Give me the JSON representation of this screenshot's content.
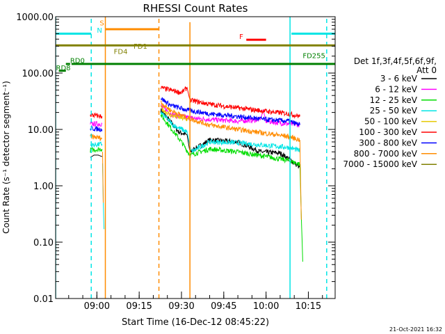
{
  "chart_data": {
    "type": "line",
    "title": "RHESSI Count Rates",
    "xlabel": "Start Time (16-Dec-12 08:45:22)",
    "ylabel": "Count Rate (s⁻¹ detector segment⁻¹)",
    "yscale": "log",
    "xlim": [
      "08:45:22",
      "10:24:30"
    ],
    "ylim": [
      0.01,
      1000
    ],
    "x_ticks": [
      "09:00",
      "09:15",
      "09:30",
      "09:45",
      "10:00",
      "10:15"
    ],
    "y_ticks": [
      "1000.00",
      "100.00",
      "10.00",
      "1.00",
      "0.10",
      "0.01"
    ],
    "legend": {
      "title_lines": [
        "Det 1f,3f,4f,5f,6f,9f,",
        "Att 0"
      ],
      "placement": "right",
      "entries": [
        {
          "label": "3 - 6 keV",
          "color": "#000000"
        },
        {
          "label": "6 - 12 keV",
          "color": "#ff00ff"
        },
        {
          "label": "12 - 25 keV",
          "color": "#00dd00"
        },
        {
          "label": "25 - 50 keV",
          "color": "#00e5e5"
        },
        {
          "label": "50 - 100 keV",
          "color": "#e5c800"
        },
        {
          "label": "100 - 300 keV",
          "color": "#ff0000"
        },
        {
          "label": "300 - 800 keV",
          "color": "#0000ff"
        },
        {
          "label": "800 - 7000 keV",
          "color": "#ff8c00"
        },
        {
          "label": "7000 - 15000 keV",
          "color": "#808000"
        }
      ]
    },
    "series": [
      {
        "name": "3 - 6 keV",
        "color": "#000000",
        "segments": [
          {
            "x": [
              "08:57:40",
              "08:59:00",
              "09:00:30",
              "09:01:50"
            ],
            "y": [
              3.2,
              3.5,
              3.5,
              3.3
            ]
          },
          {
            "x": [
              "09:22:40",
              "09:26:00",
              "09:29:00",
              "09:32:00",
              "09:33:00",
              "09:40:00",
              "09:50:00",
              "09:58:00",
              "10:05:00",
              "10:09:00",
              "10:12:00"
            ],
            "y": [
              22,
              14,
              9,
              8,
              4,
              6.5,
              6,
              4,
              3.8,
              2.8,
              2.1
            ]
          }
        ]
      },
      {
        "name": "6 - 12 keV",
        "color": "#ff00ff",
        "segments": [
          {
            "x": [
              "08:57:40",
              "09:01:50"
            ],
            "y": [
              12.5,
              12.5
            ]
          },
          {
            "x": [
              "09:22:40",
              "09:27:00",
              "09:33:00",
              "09:40:00",
              "09:50:00",
              "09:58:00",
              "09:59:00",
              "10:00:00",
              "10:05:00",
              "10:12:00"
            ],
            "y": [
              26,
              18,
              16,
              15,
              14,
              15,
              22,
              14,
              13,
              12
            ]
          }
        ]
      },
      {
        "name": "12 - 25 keV",
        "color": "#00dd00",
        "segments": [
          {
            "x": [
              "08:57:40",
              "09:01:50"
            ],
            "y": [
              4.3,
              4.5
            ]
          },
          {
            "x": [
              "09:22:40",
              "09:26:00",
              "09:30:00",
              "09:33:00",
              "09:40:00",
              "09:50:00",
              "10:00:00",
              "10:08:00",
              "10:12:00"
            ],
            "y": [
              18,
              11,
              6,
              3.5,
              4.5,
              4,
              3.3,
              2.8,
              2.4
            ]
          },
          {
            "x": [
              "10:12:00",
              "10:12:30",
              "10:13:00"
            ],
            "y": [
              2.4,
              0.3,
              0.045
            ]
          }
        ]
      },
      {
        "name": "25 - 50 keV",
        "color": "#00e5e5",
        "segments": [
          {
            "x": [
              "08:57:40",
              "09:01:50"
            ],
            "y": [
              5.2,
              5.5
            ]
          },
          {
            "x": [
              "09:02:00",
              "09:02:15",
              "09:02:30"
            ],
            "y": [
              2.5,
              0.5,
              0.17
            ]
          },
          {
            "x": [
              "09:22:40",
              "09:27:00",
              "09:32:00",
              "09:33:30",
              "09:40:00",
              "09:50:00",
              "10:00:00",
              "10:08:00",
              "10:12:00"
            ],
            "y": [
              20,
              12,
              9,
              4,
              6,
              5.8,
              5.2,
              4.8,
              4.2
            ]
          }
        ]
      },
      {
        "name": "50 - 100 keV",
        "color": "#e5c800",
        "segments": [
          {
            "x": [
              "09:22:40",
              "09:26:00",
              "09:32:00"
            ],
            "y": [
              24,
              18,
              15
            ]
          }
        ]
      },
      {
        "name": "100 - 300 keV",
        "color": "#ff0000",
        "segments": [
          {
            "x": [
              "08:57:40",
              "09:01:50"
            ],
            "y": [
              18,
              17
            ]
          },
          {
            "x": [
              "09:22:40",
              "09:26:00",
              "09:30:00",
              "09:32:00",
              "09:33:00",
              "09:40:00",
              "09:50:00",
              "10:00:00",
              "10:08:00",
              "10:12:00"
            ],
            "y": [
              55,
              50,
              45,
              55,
              33,
              28,
              24,
              21,
              19,
              17
            ]
          }
        ]
      },
      {
        "name": "300 - 800 keV",
        "color": "#0000ff",
        "segments": [
          {
            "x": [
              "08:57:40",
              "09:01:50"
            ],
            "y": [
              10.5,
              10
            ]
          },
          {
            "x": [
              "09:22:40",
              "09:26:00",
              "09:32:00",
              "09:40:00",
              "09:50:00",
              "10:00:00",
              "10:08:00",
              "10:12:00"
            ],
            "y": [
              36,
              27,
              22,
              19,
              17,
              15,
              14,
              12
            ]
          }
        ]
      },
      {
        "name": "800 - 7000 keV",
        "color": "#ff8c00",
        "segments": [
          {
            "x": [
              "08:57:40",
              "09:01:50"
            ],
            "y": [
              7.5,
              7
            ]
          },
          {
            "x": [
              "09:02:00",
              "09:02:15"
            ],
            "y": [
              4,
              0.5
            ]
          },
          {
            "x": [
              "09:22:40",
              "09:26:00",
              "09:32:00",
              "09:40:00",
              "09:50:00",
              "10:00:00",
              "10:08:00",
              "10:12:00"
            ],
            "y": [
              30,
              22,
              16,
              12,
              10,
              8.5,
              7.5,
              6.5
            ]
          },
          {
            "x": [
              "10:12:00",
              "10:12:30"
            ],
            "y": [
              6.5,
              0.25
            ]
          }
        ]
      }
    ],
    "annotations": [
      {
        "kind": "hline",
        "label": "FD1",
        "color": "#808000",
        "y": 310,
        "x": [
          "08:45:22",
          "10:24:30"
        ],
        "label_x": "09:13:00",
        "label_y": 270
      },
      {
        "kind": "hline",
        "label": "FD4",
        "color": "#808000",
        "x_label": "09:06:00",
        "label_y": 220
      },
      {
        "kind": "hline",
        "label": "FD255",
        "color": "#008000",
        "y": 145,
        "x": [
          "08:51:00",
          "10:24:30"
        ],
        "label_x": "10:13:00",
        "label_y": 185
      },
      {
        "kind": "hline",
        "label": "RD0",
        "color": "#008000",
        "y": 145,
        "x": [
          "08:49:00",
          "08:50:30"
        ],
        "label_x": "08:50:30",
        "label_y": 150
      },
      {
        "kind": "hline",
        "label": "RD8",
        "color": "#008000",
        "y": 110,
        "x": [
          "08:46:30",
          "08:49:00"
        ],
        "label_x": "08:45:30",
        "label_y": 112
      },
      {
        "kind": "hline",
        "label": "S",
        "color": "#ff8c00",
        "y": 600,
        "x": [
          "09:03:00",
          "09:22:00"
        ],
        "label_x": "09:01:00",
        "label_y": 700
      },
      {
        "kind": "hline",
        "label": "F",
        "color": "#ff0000",
        "y": 390,
        "x": [
          "09:53:00",
          "10:00:00"
        ],
        "label_x": "09:50:30",
        "label_y": 400
      },
      {
        "kind": "hline",
        "label": "N",
        "color": "#00e5e5",
        "y": 500,
        "x": [
          "08:45:22",
          "08:58:00"
        ],
        "label_x": "09:00:00",
        "label_y": 520
      },
      {
        "kind": "hline",
        "label": "",
        "color": "#00e5e5",
        "y": 500,
        "x": [
          "10:09:00",
          "10:24:30"
        ]
      }
    ],
    "vlines": [
      {
        "x": "08:45:22",
        "color": "#00e5e5",
        "style": "solid"
      },
      {
        "x": "08:58:00",
        "color": "#00e5e5",
        "style": "dashed"
      },
      {
        "x": "09:03:00",
        "color": "#ff8c00",
        "style": "solid"
      },
      {
        "x": "09:22:00",
        "color": "#ff8c00",
        "style": "dashed"
      },
      {
        "x": "09:33:00",
        "color": "#ff8c00",
        "style": "solid",
        "ymin": 0.01,
        "ymax": 800
      },
      {
        "x": "10:08:30",
        "color": "#00e5e5",
        "style": "solid"
      },
      {
        "x": "10:21:30",
        "color": "#00e5e5",
        "style": "dashed"
      }
    ]
  },
  "footer": {
    "timestamp": "21-Oct-2021 16:32"
  }
}
